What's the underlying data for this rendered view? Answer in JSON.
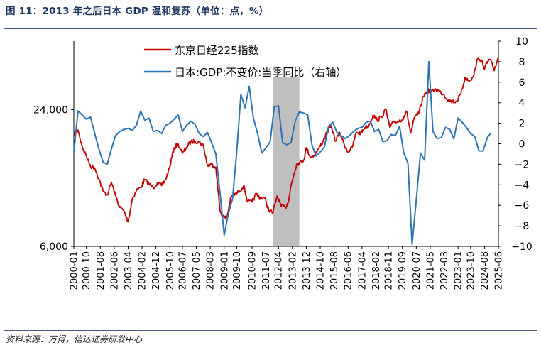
{
  "header": {
    "title": "图 11：2013 年之后日本 GDP 温和复苏（单位：点，%）"
  },
  "footer": {
    "source": "资料来源：万得，信达证券研发中心"
  },
  "colors": {
    "nikkei": "#c00000",
    "gdp": "#2e75b6",
    "shade": "#bfbfbf",
    "rule": "#4a5d7a"
  },
  "chart_data": {
    "type": "line",
    "title": "",
    "x_axis": {
      "tick_labels": [
        "2000-01",
        "2000-10",
        "2001-08",
        "2002-06",
        "2003-04",
        "2004-02",
        "2004-12",
        "2005-10",
        "2006-07",
        "2007-05",
        "2008-03",
        "2009-01",
        "2009-10",
        "2010-09",
        "2011-07",
        "2012-04",
        "2013-02",
        "2013-12",
        "2014-10",
        "2015-08",
        "2016-06",
        "2017-04",
        "2018-02",
        "2018-11",
        "2019-09",
        "2020-07",
        "2021-05",
        "2022-03",
        "2023-01",
        "2023-10",
        "2024-08",
        "2025-06"
      ],
      "range": [
        "2000-01",
        "2025-06"
      ]
    },
    "left_axis": {
      "scale": "log",
      "tick_labels": [
        "24,000",
        "6,000"
      ],
      "range": [
        6000,
        48000
      ]
    },
    "right_axis": {
      "tick_labels": [
        "10",
        "8",
        "6",
        "4",
        "2",
        "0",
        "−2",
        "−4",
        "−6",
        "−8",
        "−10"
      ],
      "range": [
        -10,
        10
      ]
    },
    "legend": {
      "position": "top-left-inside"
    },
    "shaded_period": [
      "2011-12",
      "2013-07"
    ],
    "series": [
      {
        "name": "东京日经225指数",
        "axis": "left",
        "points": [
          [
            "2000-01",
            18500
          ],
          [
            "2000-04",
            19500
          ],
          [
            "2000-07",
            16500
          ],
          [
            "2000-10",
            15000
          ],
          [
            "2001-01",
            13500
          ],
          [
            "2001-04",
            13300
          ],
          [
            "2001-07",
            11900
          ],
          [
            "2001-10",
            10500
          ],
          [
            "2002-01",
            10100
          ],
          [
            "2002-04",
            11500
          ],
          [
            "2002-07",
            10000
          ],
          [
            "2002-10",
            8900
          ],
          [
            "2003-01",
            8600
          ],
          [
            "2003-04",
            7700
          ],
          [
            "2003-07",
            9700
          ],
          [
            "2003-10",
            10600
          ],
          [
            "2004-01",
            10900
          ],
          [
            "2004-04",
            11800
          ],
          [
            "2004-07",
            11300
          ],
          [
            "2004-10",
            10900
          ],
          [
            "2005-01",
            11400
          ],
          [
            "2005-04",
            11100
          ],
          [
            "2005-07",
            11800
          ],
          [
            "2005-10",
            13500
          ],
          [
            "2006-01",
            16300
          ],
          [
            "2006-04",
            16900
          ],
          [
            "2006-07",
            15400
          ],
          [
            "2006-10",
            16400
          ],
          [
            "2007-01",
            17300
          ],
          [
            "2007-04",
            17400
          ],
          [
            "2007-07",
            17300
          ],
          [
            "2007-10",
            16700
          ],
          [
            "2008-01",
            13600
          ],
          [
            "2008-04",
            13800
          ],
          [
            "2008-07",
            13400
          ],
          [
            "2008-10",
            8600
          ],
          [
            "2009-01",
            8000
          ],
          [
            "2009-03",
            8100
          ],
          [
            "2009-06",
            9900
          ],
          [
            "2009-09",
            10200
          ],
          [
            "2009-12",
            10500
          ],
          [
            "2010-03",
            11100
          ],
          [
            "2010-06",
            9400
          ],
          [
            "2010-09",
            9400
          ],
          [
            "2010-12",
            10200
          ],
          [
            "2011-03",
            9800
          ],
          [
            "2011-06",
            9800
          ],
          [
            "2011-09",
            8700
          ],
          [
            "2011-12",
            8400
          ],
          [
            "2012-03",
            10000
          ],
          [
            "2012-06",
            9000
          ],
          [
            "2012-09",
            8900
          ],
          [
            "2012-11",
            9400
          ],
          [
            "2013-01",
            11100
          ],
          [
            "2013-03",
            12400
          ],
          [
            "2013-05",
            13800
          ],
          [
            "2013-07",
            14000
          ],
          [
            "2013-10",
            14300
          ],
          [
            "2013-12",
            16300
          ],
          [
            "2014-03",
            14800
          ],
          [
            "2014-06",
            15200
          ],
          [
            "2014-09",
            16200
          ],
          [
            "2014-12",
            17400
          ],
          [
            "2015-03",
            19200
          ],
          [
            "2015-06",
            20200
          ],
          [
            "2015-09",
            17400
          ],
          [
            "2015-12",
            19000
          ],
          [
            "2016-03",
            17000
          ],
          [
            "2016-06",
            15600
          ],
          [
            "2016-09",
            16400
          ],
          [
            "2016-12",
            19100
          ],
          [
            "2017-03",
            18900
          ],
          [
            "2017-06",
            20000
          ],
          [
            "2017-09",
            20400
          ],
          [
            "2017-12",
            22700
          ],
          [
            "2018-03",
            21500
          ],
          [
            "2018-06",
            22300
          ],
          [
            "2018-09",
            24100
          ],
          [
            "2018-12",
            20000
          ],
          [
            "2019-03",
            21200
          ],
          [
            "2019-06",
            21300
          ],
          [
            "2019-09",
            21800
          ],
          [
            "2019-12",
            23600
          ],
          [
            "2020-03",
            18900
          ],
          [
            "2020-06",
            22300
          ],
          [
            "2020-09",
            23200
          ],
          [
            "2020-12",
            27400
          ],
          [
            "2021-03",
            29200
          ],
          [
            "2021-06",
            28800
          ],
          [
            "2021-09",
            29500
          ],
          [
            "2021-12",
            28800
          ],
          [
            "2022-03",
            27800
          ],
          [
            "2022-06",
            26400
          ],
          [
            "2022-09",
            26000
          ],
          [
            "2022-12",
            26100
          ],
          [
            "2023-03",
            28000
          ],
          [
            "2023-06",
            33200
          ],
          [
            "2023-09",
            31900
          ],
          [
            "2023-12",
            33500
          ],
          [
            "2024-03",
            40300
          ],
          [
            "2024-06",
            39600
          ],
          [
            "2024-08",
            36000
          ],
          [
            "2024-10",
            39100
          ],
          [
            "2024-12",
            39900
          ],
          [
            "2025-03",
            35600
          ],
          [
            "2025-06",
            40500
          ]
        ]
      },
      {
        "name": "日本:GDP:不变价:当季同比（右轴）",
        "axis": "right",
        "points": [
          [
            "2000-01",
            -0.8
          ],
          [
            "2000-04",
            3.2
          ],
          [
            "2000-07",
            2.8
          ],
          [
            "2000-10",
            2.4
          ],
          [
            "2001-01",
            2.6
          ],
          [
            "2001-04",
            1.0
          ],
          [
            "2001-07",
            -0.5
          ],
          [
            "2001-10",
            -1.8
          ],
          [
            "2002-01",
            -2.0
          ],
          [
            "2002-04",
            -0.5
          ],
          [
            "2002-07",
            0.8
          ],
          [
            "2002-10",
            1.2
          ],
          [
            "2003-01",
            1.4
          ],
          [
            "2003-04",
            1.5
          ],
          [
            "2003-07",
            1.3
          ],
          [
            "2003-10",
            1.8
          ],
          [
            "2004-01",
            3.2
          ],
          [
            "2004-04",
            2.3
          ],
          [
            "2004-07",
            2.5
          ],
          [
            "2004-10",
            1.2
          ],
          [
            "2005-01",
            1.3
          ],
          [
            "2005-04",
            1.0
          ],
          [
            "2005-07",
            1.8
          ],
          [
            "2005-10",
            2.0
          ],
          [
            "2006-01",
            2.4
          ],
          [
            "2006-04",
            2.8
          ],
          [
            "2006-07",
            1.2
          ],
          [
            "2006-10",
            1.8
          ],
          [
            "2007-01",
            2.2
          ],
          [
            "2007-04",
            1.9
          ],
          [
            "2007-07",
            1.0
          ],
          [
            "2007-10",
            0.7
          ],
          [
            "2008-01",
            1.1
          ],
          [
            "2008-04",
            0.1
          ],
          [
            "2008-07",
            -1.0
          ],
          [
            "2008-10",
            -4.8
          ],
          [
            "2009-01",
            -8.9
          ],
          [
            "2009-04",
            -6.8
          ],
          [
            "2009-07",
            -5.4
          ],
          [
            "2009-10",
            -0.8
          ],
          [
            "2010-01",
            4.8
          ],
          [
            "2010-04",
            3.5
          ],
          [
            "2010-07",
            5.6
          ],
          [
            "2010-10",
            2.5
          ],
          [
            "2011-01",
            1.0
          ],
          [
            "2011-04",
            -0.9
          ],
          [
            "2011-07",
            -0.4
          ],
          [
            "2011-10",
            0.2
          ],
          [
            "2012-01",
            3.6
          ],
          [
            "2012-04",
            3.7
          ],
          [
            "2012-07",
            0.1
          ],
          [
            "2012-10",
            -0.1
          ],
          [
            "2013-01",
            0.1
          ],
          [
            "2013-04",
            2.2
          ],
          [
            "2013-07",
            3.1
          ],
          [
            "2013-10",
            3.0
          ],
          [
            "2014-01",
            2.8
          ],
          [
            "2014-04",
            -0.1
          ],
          [
            "2014-07",
            -1.2
          ],
          [
            "2014-10",
            -0.8
          ],
          [
            "2015-01",
            -0.3
          ],
          [
            "2015-04",
            1.7
          ],
          [
            "2015-07",
            2.1
          ],
          [
            "2015-10",
            1.1
          ],
          [
            "2016-01",
            0.8
          ],
          [
            "2016-04",
            0.5
          ],
          [
            "2016-07",
            0.8
          ],
          [
            "2016-10",
            1.2
          ],
          [
            "2017-01",
            1.5
          ],
          [
            "2017-04",
            1.6
          ],
          [
            "2017-07",
            2.1
          ],
          [
            "2017-10",
            2.2
          ],
          [
            "2018-01",
            1.2
          ],
          [
            "2018-04",
            1.4
          ],
          [
            "2018-07",
            0.2
          ],
          [
            "2018-10",
            0.3
          ],
          [
            "2019-01",
            0.9
          ],
          [
            "2019-04",
            0.8
          ],
          [
            "2019-07",
            1.7
          ],
          [
            "2019-10",
            -0.9
          ],
          [
            "2020-01",
            -1.9
          ],
          [
            "2020-04",
            -9.8
          ],
          [
            "2020-07",
            -5.5
          ],
          [
            "2020-10",
            -0.9
          ],
          [
            "2021-01",
            -1.6
          ],
          [
            "2021-04",
            8.0
          ],
          [
            "2021-07",
            1.2
          ],
          [
            "2021-10",
            0.5
          ],
          [
            "2022-01",
            0.6
          ],
          [
            "2022-04",
            1.6
          ],
          [
            "2022-07",
            1.4
          ],
          [
            "2022-10",
            0.5
          ],
          [
            "2023-01",
            2.5
          ],
          [
            "2023-04",
            2.1
          ],
          [
            "2023-07",
            1.6
          ],
          [
            "2023-10",
            1.0
          ],
          [
            "2024-01",
            0.7
          ],
          [
            "2024-04",
            -0.7
          ],
          [
            "2024-07",
            -0.7
          ],
          [
            "2024-10",
            0.6
          ],
          [
            "2025-01",
            1.1
          ]
        ]
      }
    ]
  }
}
